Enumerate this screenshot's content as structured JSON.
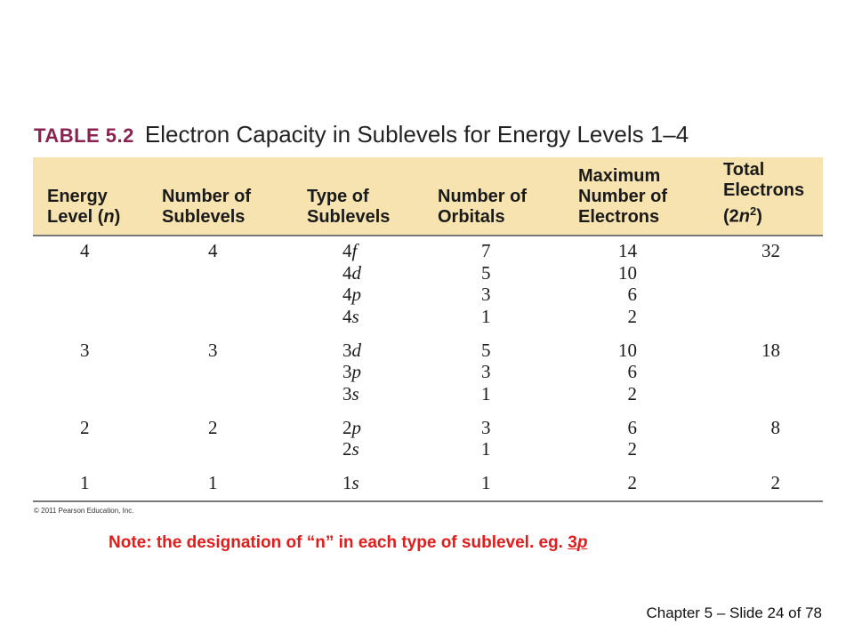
{
  "table": {
    "label": "TABLE 5.2",
    "caption": "Electron Capacity in Sublevels for Energy Levels 1–4",
    "headers": {
      "energy_level": [
        "Energy",
        "Level (",
        "n",
        ")"
      ],
      "num_sublevels": [
        "Number of",
        "Sublevels"
      ],
      "type_sublevels": [
        "Type of",
        "Sublevels"
      ],
      "num_orbitals": [
        "Number of",
        "Orbitals"
      ],
      "max_electrons": [
        "Maximum",
        "Number of",
        "Electrons"
      ],
      "total_electrons": [
        "Total",
        "Electrons",
        "(2",
        "n",
        "2",
        ")"
      ]
    },
    "groups": [
      {
        "energy_level": "4",
        "num_sublevels": "4",
        "total": "32",
        "rows": [
          {
            "num": "4",
            "letter": "f",
            "orbitals": "7",
            "max": "14"
          },
          {
            "num": "4",
            "letter": "d",
            "orbitals": "5",
            "max": "10"
          },
          {
            "num": "4",
            "letter": "p",
            "orbitals": "3",
            "max": "6"
          },
          {
            "num": "4",
            "letter": "s",
            "orbitals": "1",
            "max": "2"
          }
        ]
      },
      {
        "energy_level": "3",
        "num_sublevels": "3",
        "total": "18",
        "rows": [
          {
            "num": "3",
            "letter": "d",
            "orbitals": "5",
            "max": "10"
          },
          {
            "num": "3",
            "letter": "p",
            "orbitals": "3",
            "max": "6"
          },
          {
            "num": "3",
            "letter": "s",
            "orbitals": "1",
            "max": "2"
          }
        ]
      },
      {
        "energy_level": "2",
        "num_sublevels": "2",
        "total": "8",
        "rows": [
          {
            "num": "2",
            "letter": "p",
            "orbitals": "3",
            "max": "6"
          },
          {
            "num": "2",
            "letter": "s",
            "orbitals": "1",
            "max": "2"
          }
        ]
      },
      {
        "energy_level": "1",
        "num_sublevels": "1",
        "total": "2",
        "rows": [
          {
            "num": "1",
            "letter": "s",
            "orbitals": "1",
            "max": "2"
          }
        ]
      }
    ],
    "copyright": "© 2011 Pearson Education, Inc."
  },
  "note": {
    "prefix": "Note:  the designation of “",
    "n": "n",
    "middle": "” in each type of sublevel. eg. ",
    "example_num": "3",
    "example_letter": "p"
  },
  "footer": {
    "slide_info": "Chapter 5 – Slide 24 of 78"
  },
  "colors": {
    "header_band": "#f6e3b0",
    "table_label": "#8b2350",
    "note_text": "#e31b1b"
  }
}
